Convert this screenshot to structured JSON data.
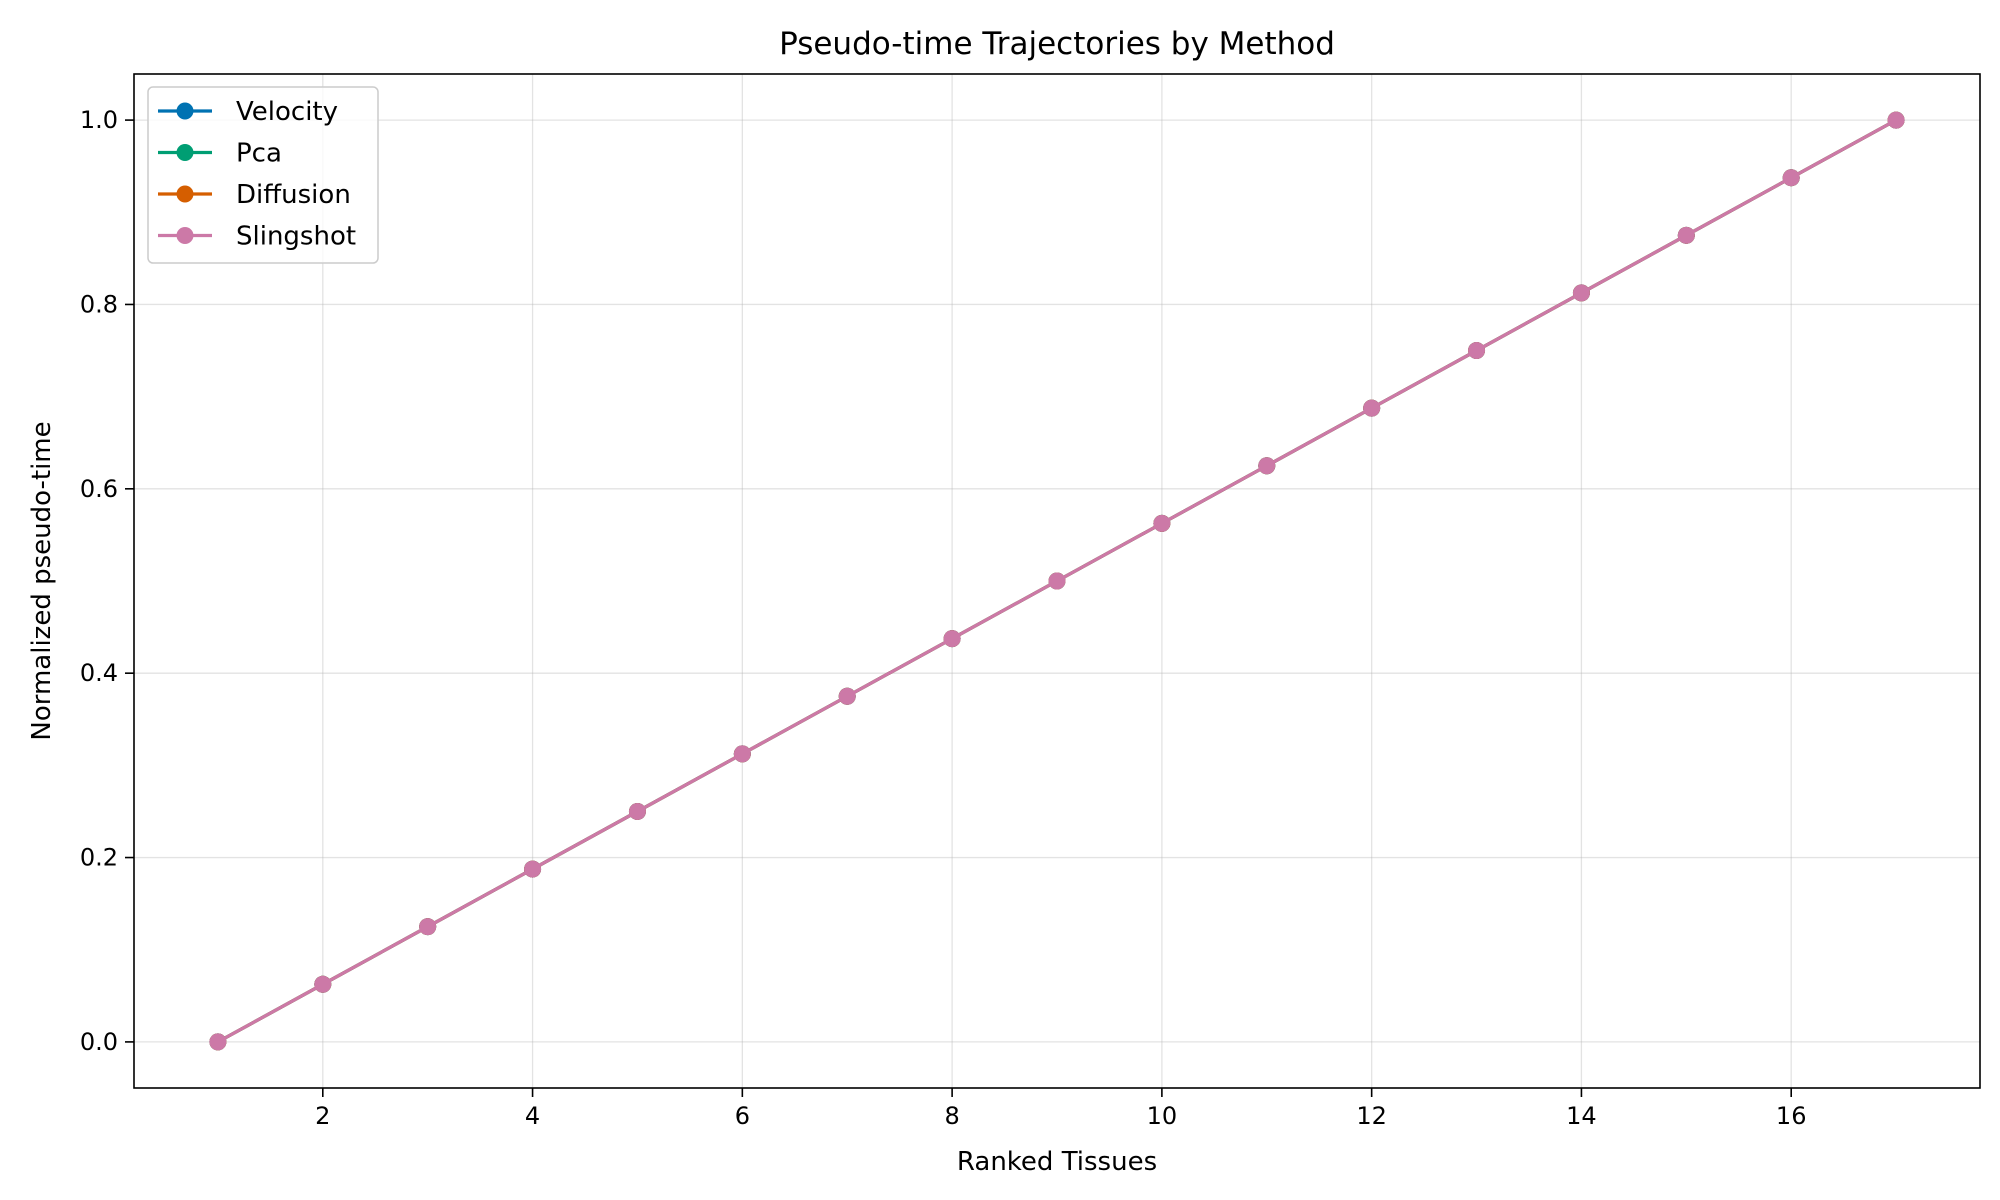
{
  "chart_data": {
    "type": "line",
    "title": "Pseudo-time Trajectories by Method",
    "xlabel": "Ranked Tissues",
    "ylabel": "Normalized pseudo-time",
    "xlim": [
      0.2,
      17.8
    ],
    "ylim": [
      -0.05,
      1.05
    ],
    "x_ticks": [
      2,
      4,
      6,
      8,
      10,
      12,
      14,
      16
    ],
    "y_ticks": [
      0.0,
      0.2,
      0.4,
      0.6,
      0.8,
      1.0
    ],
    "grid": true,
    "legend_position": "top-left",
    "x": [
      1,
      2,
      3,
      4,
      5,
      6,
      7,
      8,
      9,
      10,
      11,
      12,
      13,
      14,
      15,
      16,
      17
    ],
    "series": [
      {
        "name": "Velocity",
        "color": "#0072B2",
        "values": [
          0.0,
          0.0625,
          0.125,
          0.1875,
          0.25,
          0.3125,
          0.375,
          0.4375,
          0.5,
          0.5625,
          0.625,
          0.6875,
          0.75,
          0.8125,
          0.875,
          0.9375,
          1.0
        ]
      },
      {
        "name": "Pca",
        "color": "#009E73",
        "values": [
          0.0,
          0.0625,
          0.125,
          0.1875,
          0.25,
          0.3125,
          0.375,
          0.4375,
          0.5,
          0.5625,
          0.625,
          0.6875,
          0.75,
          0.8125,
          0.875,
          0.9375,
          1.0
        ]
      },
      {
        "name": "Diffusion",
        "color": "#D55E00",
        "values": [
          0.0,
          0.0625,
          0.125,
          0.1875,
          0.25,
          0.3125,
          0.375,
          0.4375,
          0.5,
          0.5625,
          0.625,
          0.6875,
          0.75,
          0.8125,
          0.875,
          0.9375,
          1.0
        ]
      },
      {
        "name": "Slingshot",
        "color": "#CC79A7",
        "values": [
          0.0,
          0.0625,
          0.125,
          0.1875,
          0.25,
          0.3125,
          0.375,
          0.4375,
          0.5,
          0.5625,
          0.625,
          0.6875,
          0.75,
          0.8125,
          0.875,
          0.9375,
          1.0
        ]
      }
    ]
  }
}
